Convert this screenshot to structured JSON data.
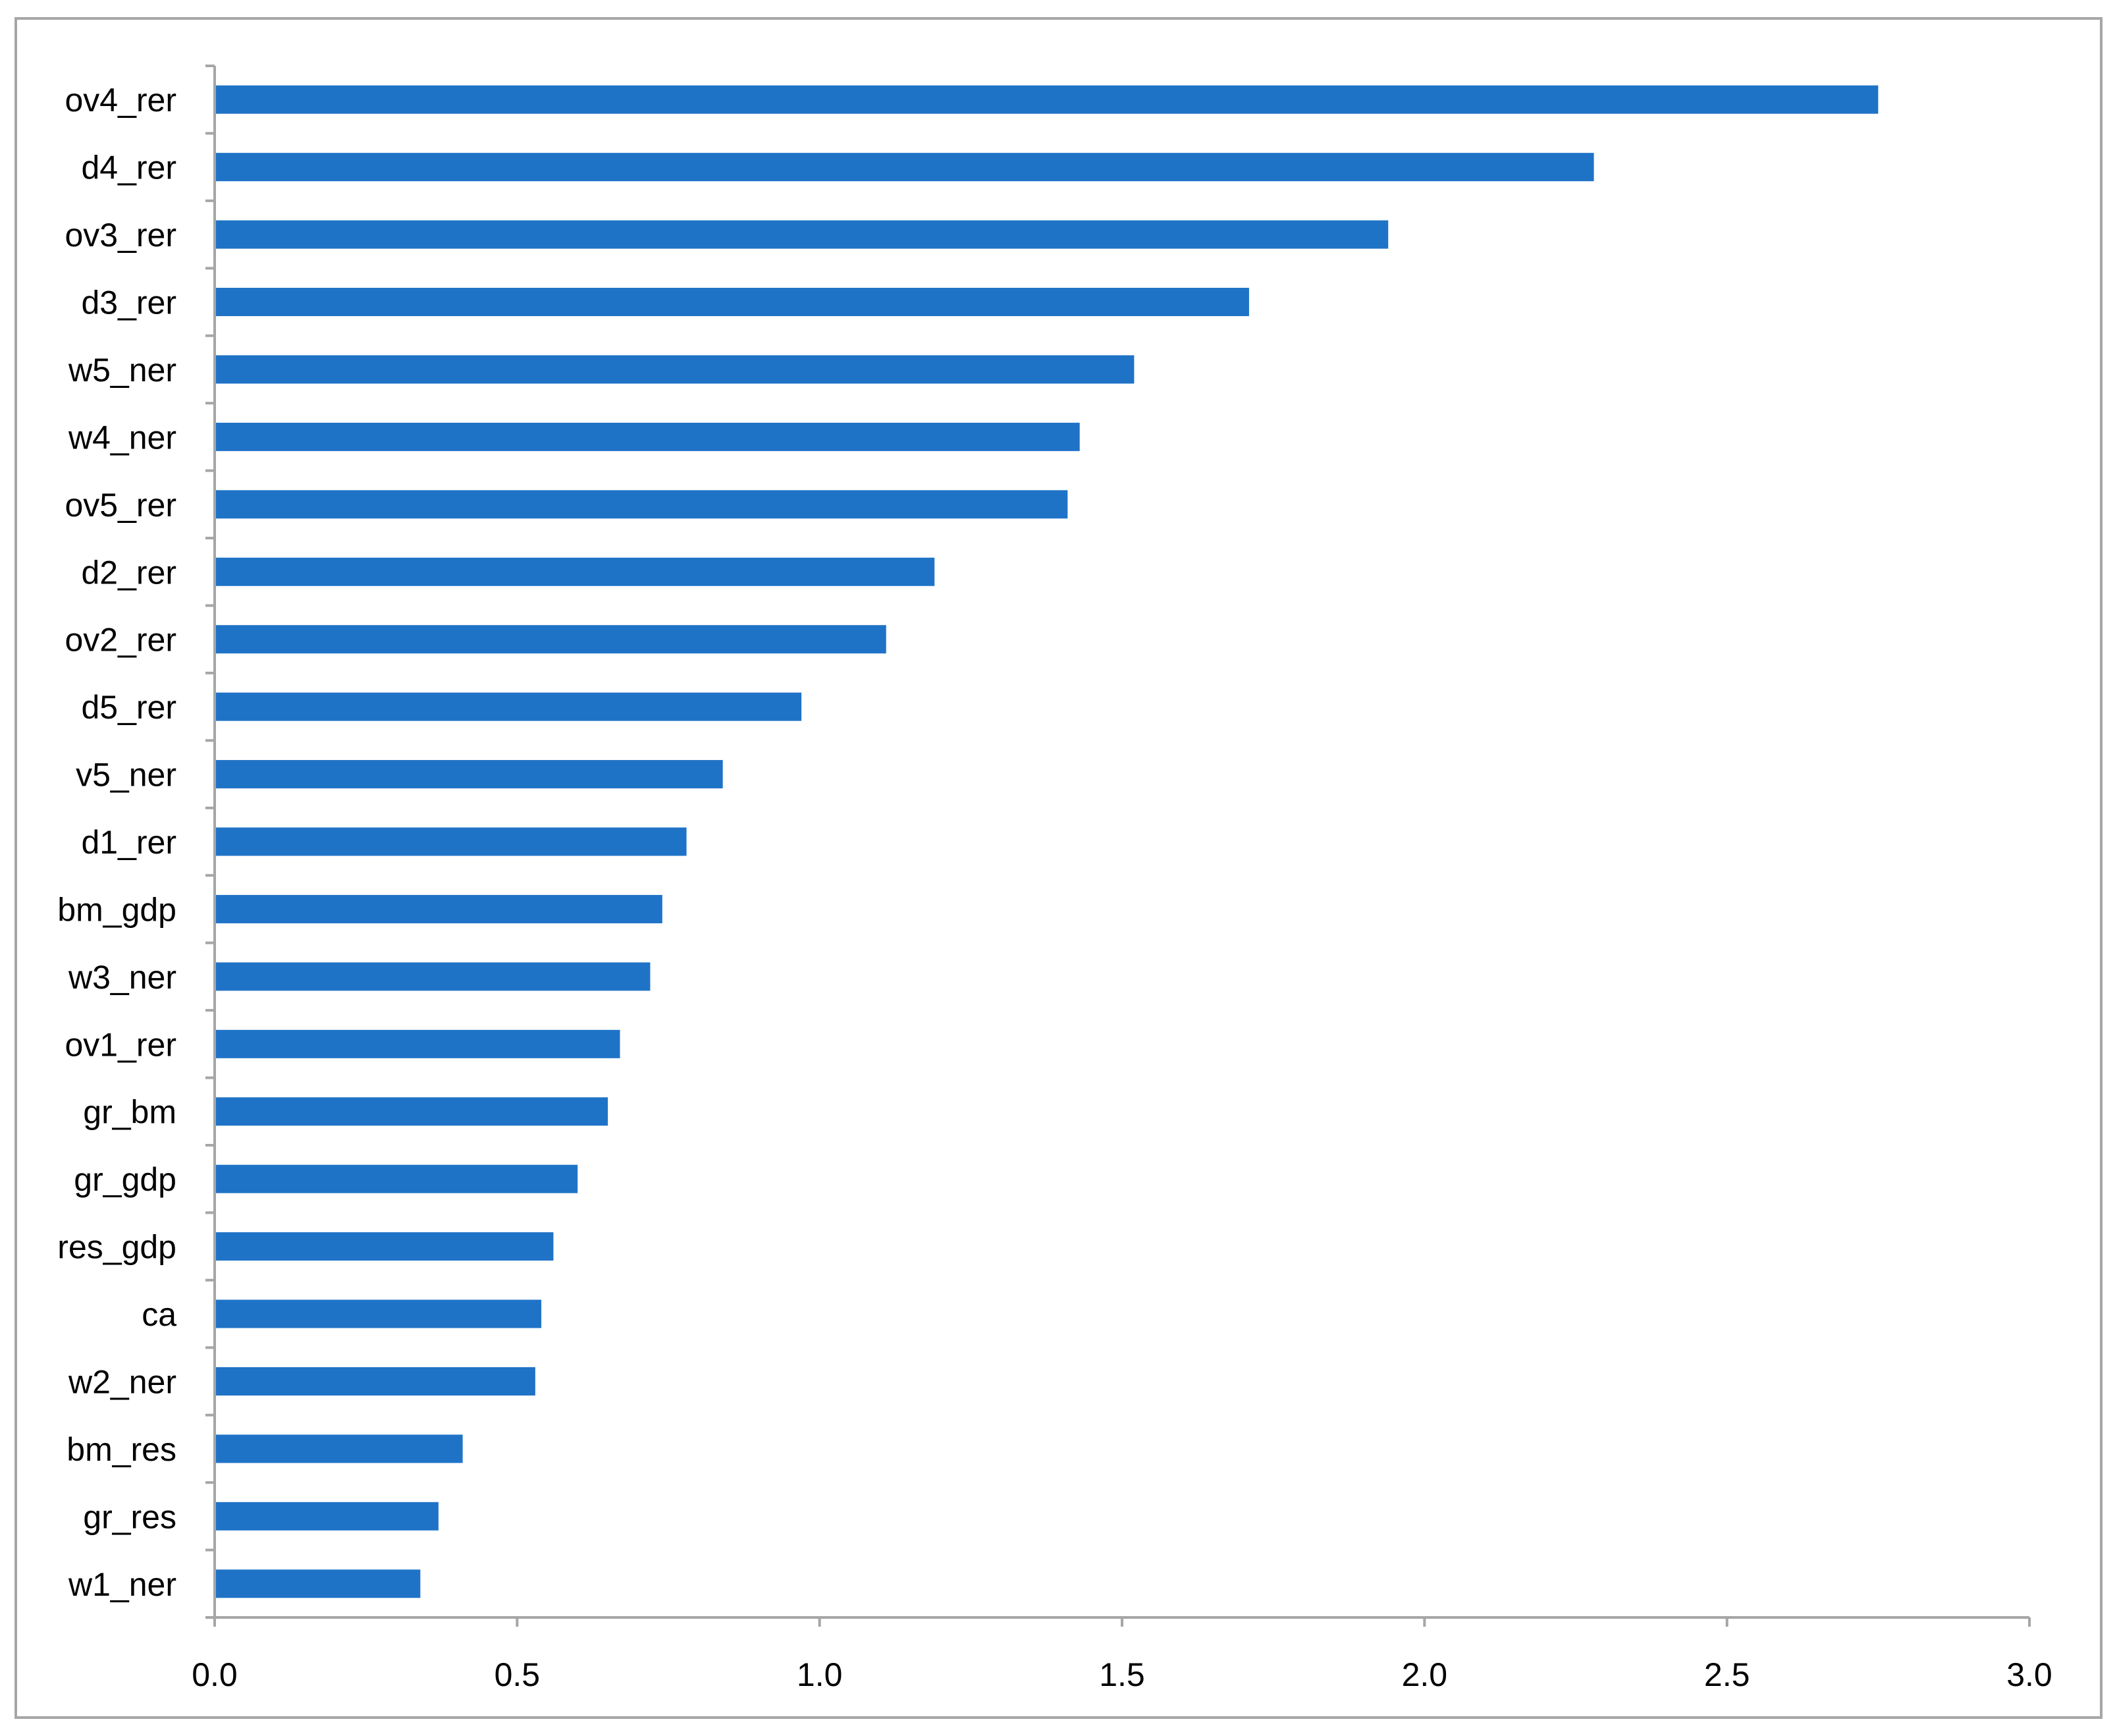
{
  "chart_data": {
    "type": "bar",
    "orientation": "horizontal",
    "title": "",
    "xlabel": "",
    "ylabel": "",
    "categories": [
      "ov4_rer",
      "d4_rer",
      "ov3_rer",
      "d3_rer",
      "w5_ner",
      "w4_ner",
      "ov5_rer",
      "d2_rer",
      "ov2_rer",
      "d5_rer",
      "v5_ner",
      "d1_rer",
      "bm_gdp",
      "w3_ner",
      "ov1_rer",
      "gr_bm",
      "gr_gdp",
      "res_gdp",
      "ca",
      "w2_ner",
      "bm_res",
      "gr_res",
      "w1_ner"
    ],
    "values": [
      2.75,
      2.28,
      1.94,
      1.71,
      1.52,
      1.43,
      1.41,
      1.19,
      1.11,
      0.97,
      0.84,
      0.78,
      0.74,
      0.72,
      0.67,
      0.65,
      0.6,
      0.56,
      0.54,
      0.53,
      0.41,
      0.37,
      0.34
    ],
    "xlim": [
      0,
      3
    ],
    "x_ticks": [
      "0.0",
      "0.5",
      "1.0",
      "1.5",
      "2.0",
      "2.5",
      "3.0"
    ],
    "grid": false,
    "legend": "none",
    "bar_color": "#1f73c7",
    "axis_color": "#a6a6a6"
  }
}
